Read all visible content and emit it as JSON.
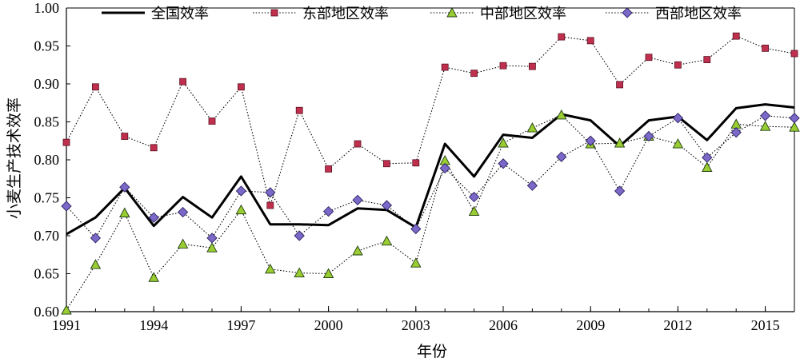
{
  "chart_data": {
    "type": "line",
    "title": "",
    "xlabel": "年份",
    "ylabel": "小麦生产技术效率",
    "xlim": [
      1991,
      2016
    ],
    "ylim": [
      0.6,
      1.0
    ],
    "x_ticks": [
      1991,
      1994,
      1997,
      2000,
      2003,
      2006,
      2009,
      2012,
      2015
    ],
    "y_ticks": [
      "0.60",
      "0.65",
      "0.70",
      "0.75",
      "0.80",
      "0.85",
      "0.90",
      "0.95",
      "1.00"
    ],
    "x": [
      1991,
      1992,
      1993,
      1994,
      1995,
      1996,
      1997,
      1998,
      1999,
      2000,
      2001,
      2002,
      2003,
      2004,
      2005,
      2006,
      2007,
      2008,
      2009,
      2010,
      2011,
      2012,
      2013,
      2014,
      2015,
      2016
    ],
    "legend_position": "top",
    "grid": false,
    "series": [
      {
        "name": "全国效率",
        "style": "solid",
        "marker": "none",
        "color": "#000000",
        "values": [
          0.702,
          0.724,
          0.763,
          0.713,
          0.751,
          0.724,
          0.778,
          0.715,
          0.715,
          0.714,
          0.736,
          0.734,
          0.711,
          0.821,
          0.778,
          0.833,
          0.829,
          0.86,
          0.852,
          0.818,
          0.852,
          0.857,
          0.826,
          0.868,
          0.873,
          0.869
        ]
      },
      {
        "name": "东部地区效率",
        "style": "dotted",
        "marker": "square",
        "color": "#c0304e",
        "values": [
          0.823,
          0.896,
          0.831,
          0.816,
          0.903,
          0.851,
          0.896,
          0.74,
          0.865,
          0.788,
          0.821,
          0.795,
          0.796,
          0.922,
          0.914,
          0.924,
          0.923,
          0.962,
          0.957,
          0.899,
          0.935,
          0.925,
          0.932,
          0.963,
          0.947,
          0.94
        ]
      },
      {
        "name": "中部地区效率",
        "style": "dotted",
        "marker": "triangle",
        "color": "#9acd32",
        "values": [
          0.602,
          0.662,
          0.73,
          0.645,
          0.689,
          0.684,
          0.734,
          0.656,
          0.651,
          0.65,
          0.68,
          0.693,
          0.664,
          0.799,
          0.732,
          0.822,
          0.842,
          0.859,
          0.821,
          0.822,
          0.831,
          0.821,
          0.79,
          0.847,
          0.844,
          0.843
        ]
      },
      {
        "name": "西部地区效率",
        "style": "dotted",
        "marker": "diamond",
        "color": "#7b68c8",
        "values": [
          0.739,
          0.697,
          0.764,
          0.724,
          0.731,
          0.697,
          0.759,
          0.757,
          0.7,
          0.732,
          0.747,
          0.74,
          0.709,
          0.789,
          0.751,
          0.795,
          0.766,
          0.804,
          0.825,
          0.759,
          0.831,
          0.855,
          0.803,
          0.836,
          0.858,
          0.855
        ]
      }
    ]
  }
}
